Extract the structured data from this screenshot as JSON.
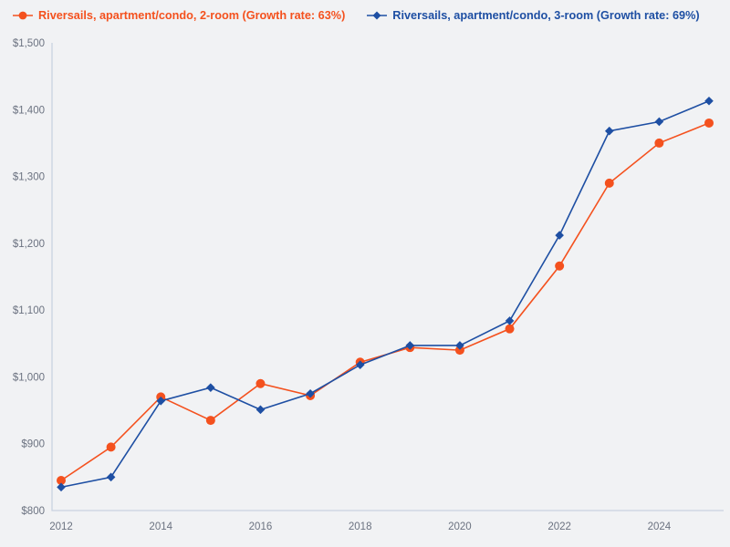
{
  "chart_data": {
    "type": "line",
    "title": "",
    "xlabel": "",
    "ylabel": "",
    "x": [
      2012,
      2013,
      2014,
      2015,
      2016,
      2017,
      2018,
      2019,
      2020,
      2021,
      2022,
      2023,
      2024,
      2025
    ],
    "series": [
      {
        "name": "Riversails, apartment/condo, 2-room (Growth rate: 63%)",
        "marker": "circle",
        "color": "#f4511e",
        "values": [
          845,
          895,
          970,
          935,
          990,
          972,
          1022,
          1044,
          1040,
          1072,
          1166,
          1290,
          1350,
          1380
        ]
      },
      {
        "name": "Riversails, apartment/condo, 3-room (Growth rate: 69%)",
        "marker": "diamond",
        "color": "#1e4fa3",
        "values": [
          835,
          850,
          964,
          984,
          951,
          975,
          1018,
          1047,
          1047,
          1084,
          1212,
          1368,
          1382,
          1413
        ]
      }
    ],
    "ylim": [
      800,
      1500
    ],
    "y_tick_step": 100,
    "grid": false,
    "legend_position": "top-left"
  },
  "axes": {
    "y_tick_labels": [
      "$800",
      "$900",
      "$1,000",
      "$1,100",
      "$1,200",
      "$1,300",
      "$1,400",
      "$1,500"
    ],
    "x_tick_labels": [
      "2012",
      "2014",
      "2016",
      "2018",
      "2020",
      "2022",
      "2024"
    ]
  },
  "colors": {
    "background": "#f1f2f4",
    "axis_line": "#c9d2e0",
    "tick_label": "#6b7280"
  }
}
